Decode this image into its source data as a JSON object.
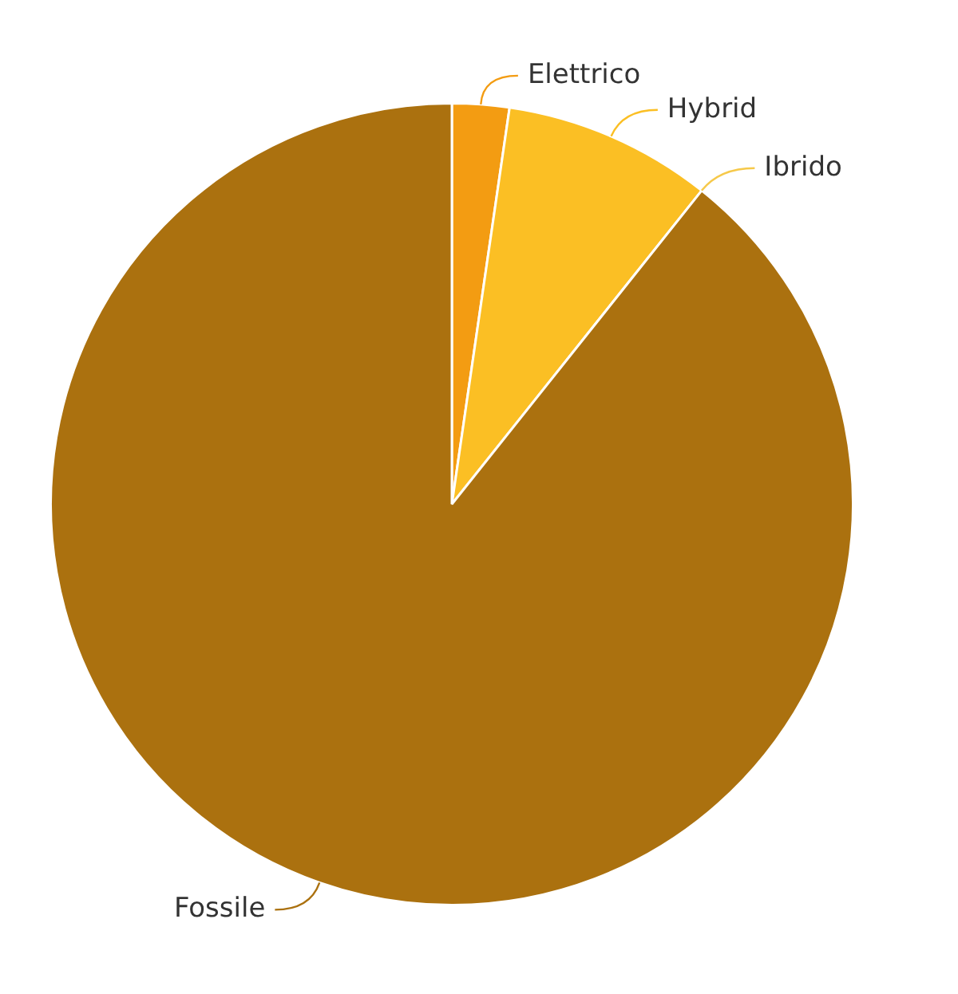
{
  "chart_data": {
    "type": "pie",
    "categories": [
      "Elettrico",
      "Hybrid",
      "Ibrido",
      "Fossile"
    ],
    "values": [
      2.3,
      8.4,
      0,
      89.3
    ],
    "colors": [
      "#f39c12",
      "#fbbf24",
      "#f6c94a",
      "#ab710f"
    ]
  }
}
